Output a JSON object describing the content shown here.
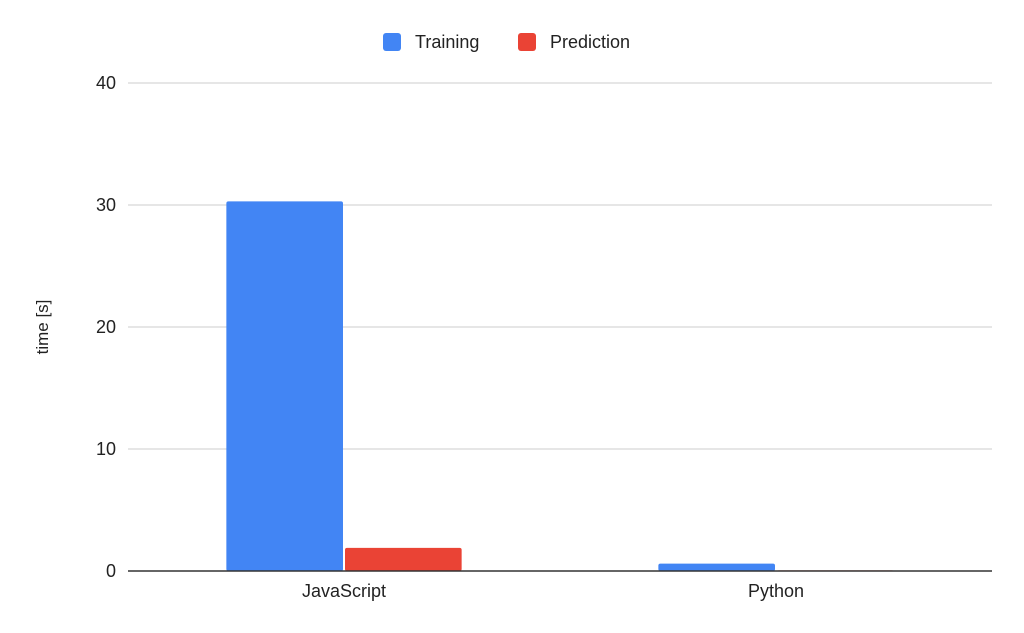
{
  "chart_data": {
    "type": "bar",
    "categories": [
      "JavaScript",
      "Python"
    ],
    "series": [
      {
        "name": "Training",
        "values": [
          30.3,
          0.6
        ],
        "color": "#4285f4"
      },
      {
        "name": "Prediction",
        "values": [
          1.9,
          0.05
        ],
        "color": "#ea4335"
      }
    ],
    "title": "",
    "xlabel": "",
    "ylabel": "time [s]",
    "ylim": [
      0,
      40
    ],
    "yticks": [
      "0",
      "10",
      "20",
      "30",
      "40"
    ],
    "grid": true,
    "legend_position": "top"
  }
}
